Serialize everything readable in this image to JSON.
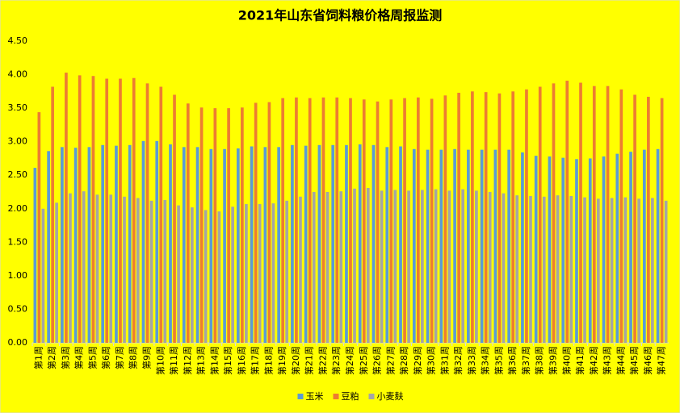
{
  "chart_data": {
    "type": "bar",
    "title": "2021年山东省饲料粮价格周报监测",
    "categories": [
      "第1周",
      "第2周",
      "第3周",
      "第4周",
      "第5周",
      "第6周",
      "第7周",
      "第8周",
      "第9周",
      "第10周",
      "第11周",
      "第12周",
      "第13周",
      "第14周",
      "第15周",
      "第16周",
      "第17周",
      "第18周",
      "第19周",
      "第20周",
      "第21周",
      "第22周",
      "第23周",
      "第24周",
      "第25周",
      "第26周",
      "第27周",
      "第28周",
      "第29周",
      "第30周",
      "第31周",
      "第32周",
      "第33周",
      "第34周",
      "第35周",
      "第36周",
      "第37周",
      "第38周",
      "第39周",
      "第40周",
      "第41周",
      "第42周",
      "第43周",
      "第44周",
      "第45周",
      "第46周",
      "第47周"
    ],
    "series": [
      {
        "name": "玉米",
        "color": "#5b9bd5",
        "values": [
          2.61,
          2.86,
          2.92,
          2.91,
          2.92,
          2.95,
          2.94,
          2.95,
          3.01,
          3.01,
          2.96,
          2.92,
          2.92,
          2.89,
          2.89,
          2.9,
          2.93,
          2.92,
          2.92,
          2.95,
          2.94,
          2.95,
          2.95,
          2.95,
          2.96,
          2.95,
          2.92,
          2.93,
          2.89,
          2.88,
          2.88,
          2.89,
          2.88,
          2.88,
          2.88,
          2.88,
          2.84,
          2.79,
          2.78,
          2.76,
          2.74,
          2.75,
          2.78,
          2.82,
          2.85,
          2.88,
          2.89
        ]
      },
      {
        "name": "豆粕",
        "color": "#ed7d31",
        "values": [
          3.44,
          3.82,
          4.03,
          3.99,
          3.98,
          3.94,
          3.94,
          3.95,
          3.87,
          3.82,
          3.7,
          3.57,
          3.51,
          3.5,
          3.5,
          3.51,
          3.58,
          3.59,
          3.65,
          3.66,
          3.65,
          3.66,
          3.66,
          3.65,
          3.63,
          3.6,
          3.63,
          3.65,
          3.66,
          3.64,
          3.69,
          3.73,
          3.75,
          3.74,
          3.72,
          3.75,
          3.78,
          3.82,
          3.87,
          3.91,
          3.88,
          3.83,
          3.83,
          3.78,
          3.7,
          3.67,
          3.65
        ]
      },
      {
        "name": "小麦麸",
        "color": "#a5a5a5",
        "values": [
          2.0,
          2.09,
          2.23,
          2.26,
          2.21,
          2.21,
          2.18,
          2.16,
          2.12,
          2.13,
          2.05,
          2.02,
          1.98,
          1.96,
          2.03,
          2.07,
          2.07,
          2.08,
          2.12,
          2.18,
          2.25,
          2.25,
          2.26,
          2.3,
          2.31,
          2.27,
          2.28,
          2.27,
          2.28,
          2.29,
          2.27,
          2.29,
          2.27,
          2.25,
          2.23,
          2.2,
          2.19,
          2.18,
          2.2,
          2.19,
          2.17,
          2.15,
          2.16,
          2.17,
          2.15,
          2.16,
          2.12
        ]
      }
    ],
    "ylim": [
      0,
      4.5
    ],
    "yticks": [
      {
        "value": 0,
        "label": "0.00"
      },
      {
        "value": 0.5,
        "label": "0.50"
      },
      {
        "value": 1,
        "label": "1.00"
      },
      {
        "value": 1.5,
        "label": "1.50"
      },
      {
        "value": 2,
        "label": "2.00"
      },
      {
        "value": 2.5,
        "label": "2.50"
      },
      {
        "value": 3,
        "label": "3.00"
      },
      {
        "value": 3.5,
        "label": "3.50"
      },
      {
        "value": 4,
        "label": "4.00"
      },
      {
        "value": 4.5,
        "label": "4.50"
      }
    ],
    "grid": false,
    "legend": "bottom"
  }
}
